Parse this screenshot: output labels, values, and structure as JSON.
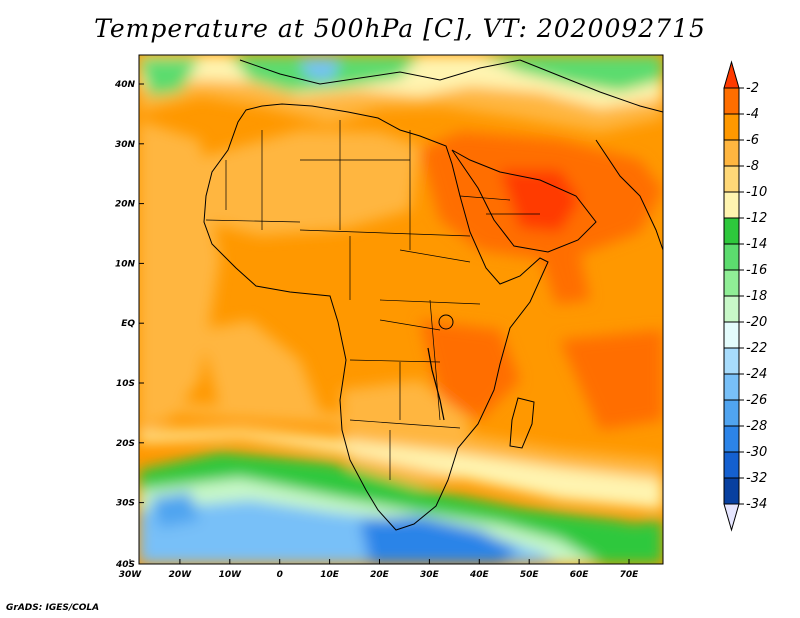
{
  "title": "Temperature at 500hPa [C], VT: 2020092715",
  "credit": "GrADS: IGES/COLA",
  "map": {
    "variable": "Temperature at 500hPa",
    "units": "C",
    "lon_range": [
      -30,
      75
    ],
    "lat_range": [
      -40,
      45
    ],
    "lat_ticks": [
      "40N",
      "30N",
      "20N",
      "10N",
      "EQ",
      "10S",
      "20S",
      "30S",
      "40S"
    ],
    "lon_ticks": [
      "30W",
      "20W",
      "10W",
      "0",
      "10E",
      "20E",
      "30E",
      "40E",
      "50E",
      "60E",
      "70E"
    ]
  },
  "colorbar": {
    "labels": [
      "-2",
      "-4",
      "-6",
      "-8",
      "-10",
      "-12",
      "-14",
      "-16",
      "-18",
      "-20",
      "-22",
      "-24",
      "-26",
      "-28",
      "-30",
      "-32",
      "-34"
    ],
    "colors": [
      "#ff3a00",
      "#ff6e00",
      "#ff9800",
      "#ffb640",
      "#ffd878",
      "#fff4b0",
      "#2ec83c",
      "#5cdc6e",
      "#90ee96",
      "#c8f8c8",
      "#e4fcfc",
      "#a8dcfc",
      "#78c0f8",
      "#50a4f0",
      "#2c84e8",
      "#1460d0",
      "#0840a0",
      "#061a70"
    ]
  }
}
